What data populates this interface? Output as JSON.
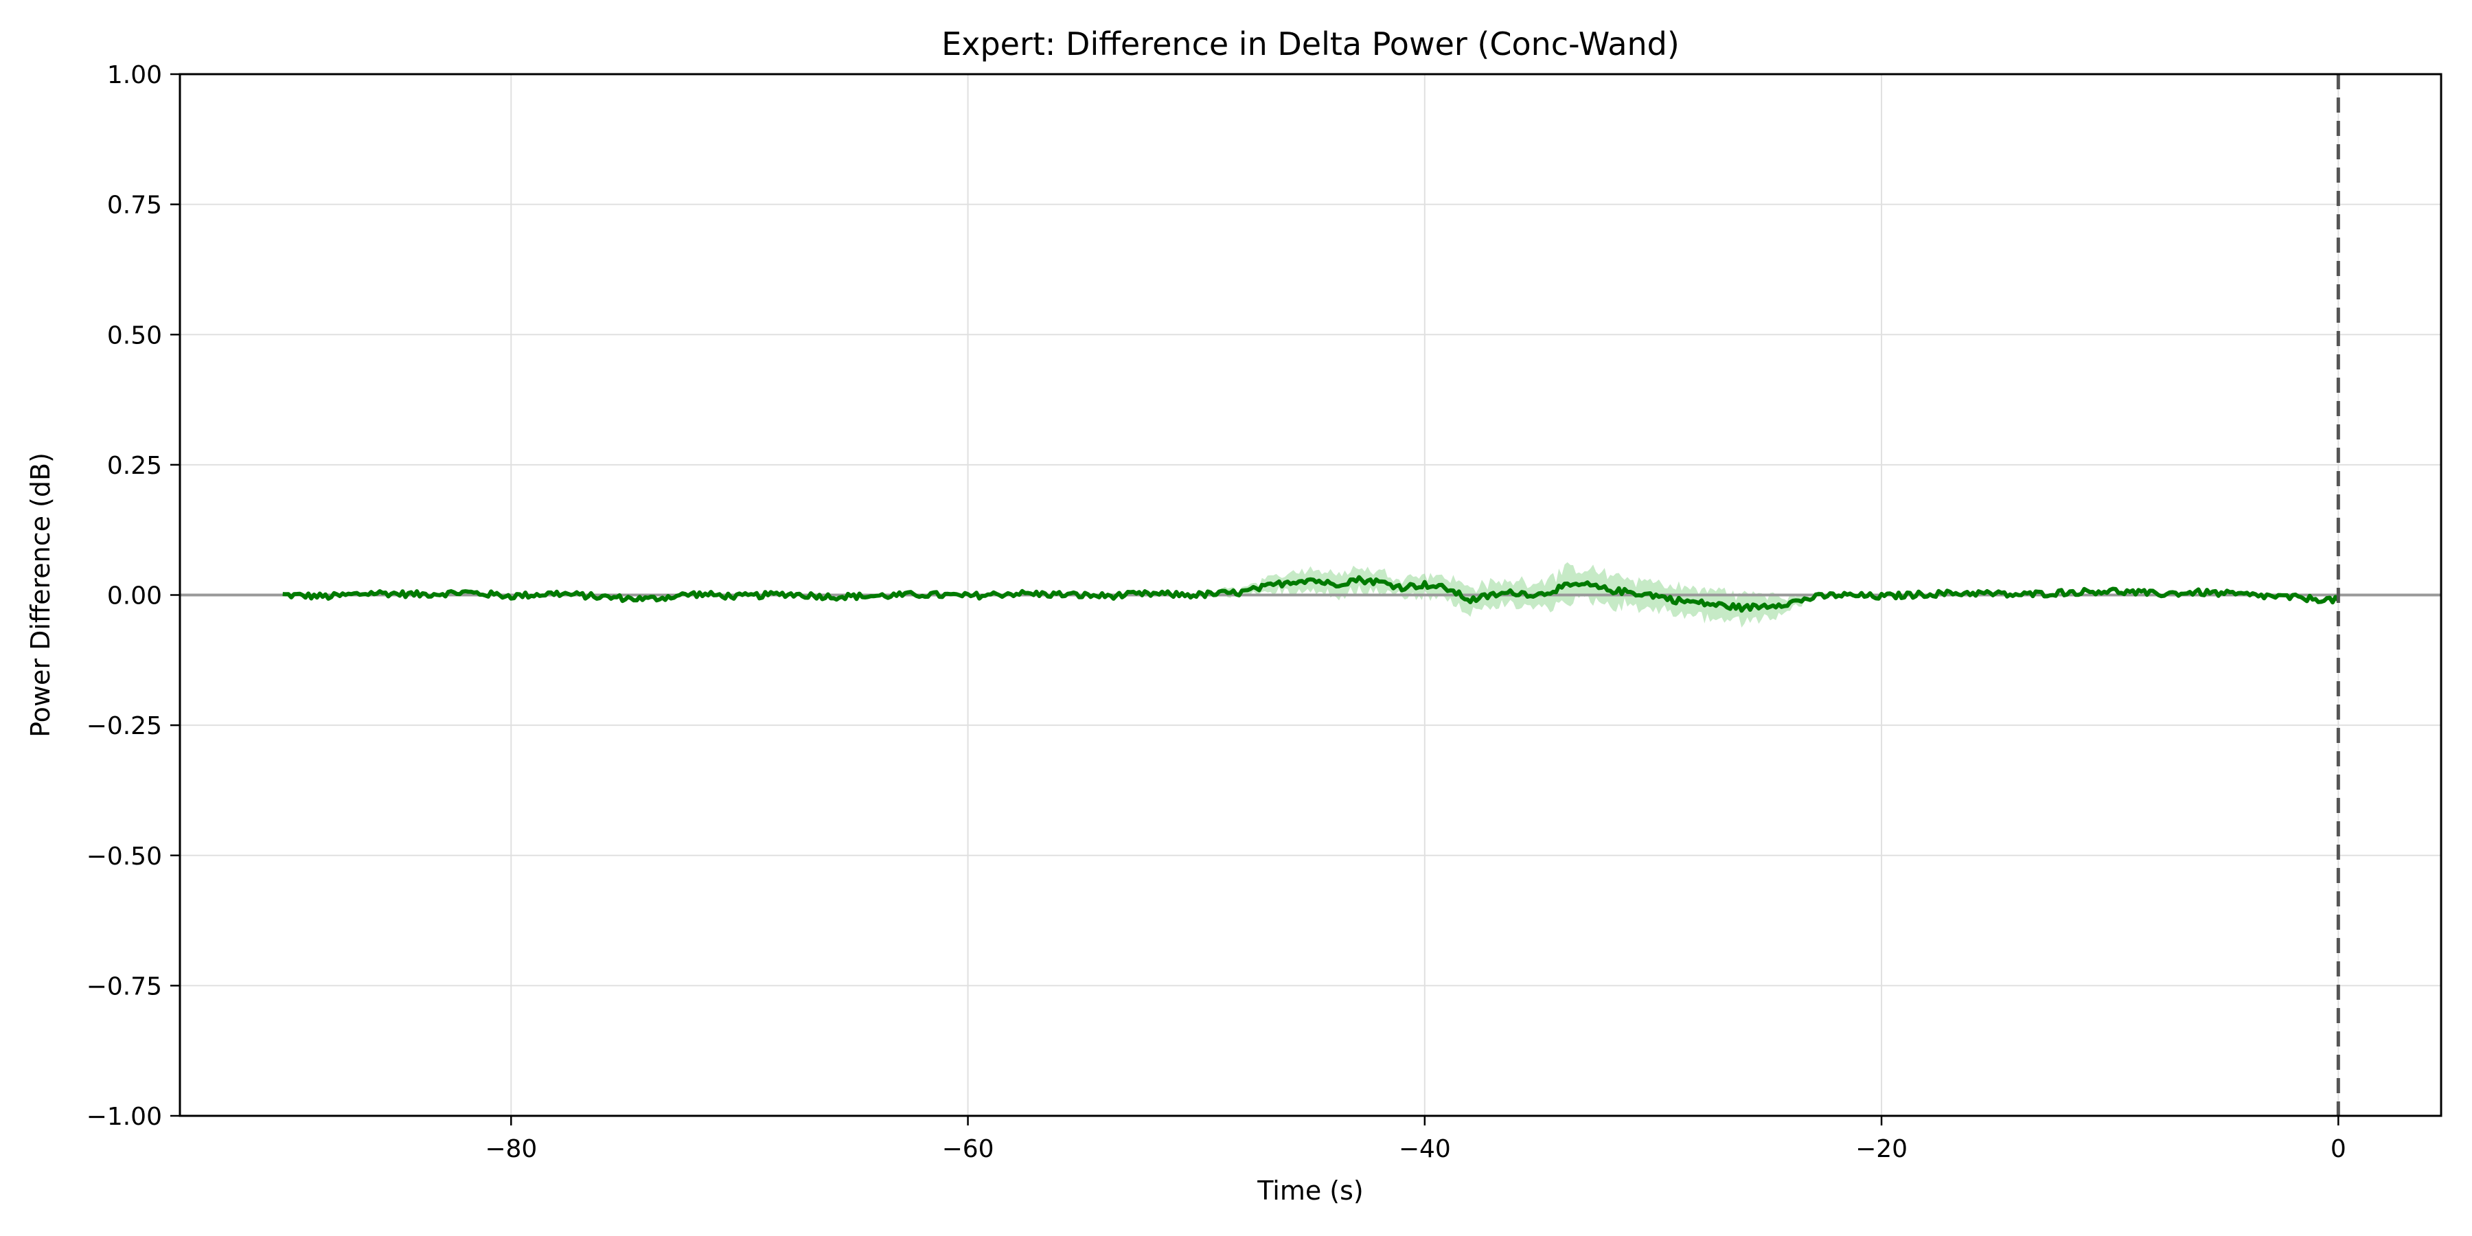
{
  "chart_data": {
    "type": "line",
    "title": "Expert: Difference in Delta Power (Conc-Wand)",
    "xlabel": "Time (s)",
    "ylabel": "Power Difference (dB)",
    "xlim": [
      -94.5,
      4.5
    ],
    "ylim": [
      -1.0,
      1.0
    ],
    "xticks": [
      -80,
      -60,
      -40,
      -20,
      0
    ],
    "xtick_labels": [
      "−80",
      "−60",
      "−40",
      "−20",
      "0"
    ],
    "yticks": [
      1.0,
      0.75,
      0.5,
      0.25,
      0.0,
      -0.25,
      -0.5,
      -0.75,
      -1.0
    ],
    "ytick_labels": [
      "1.00",
      "0.75",
      "0.50",
      "0.25",
      "0.00",
      "−0.25",
      "−0.50",
      "−0.75",
      "−1.00"
    ],
    "grid": true,
    "reference_lines": {
      "y_zero": 0,
      "x_dashed": 0
    },
    "colors": {
      "line": "#007a00",
      "band": "#98d898",
      "zero_line": "#999999",
      "vline": "#555555",
      "grid": "#e0e0e0"
    },
    "series": [
      {
        "x": [
          -90,
          -88,
          -86,
          -84,
          -82,
          -80,
          -78,
          -76,
          -74,
          -72,
          -70,
          -68,
          -66,
          -64,
          -62,
          -60,
          -58,
          -56,
          -54,
          -52,
          -50,
          -48,
          -47,
          -46,
          -45,
          -44,
          -43,
          -42,
          -41,
          -40,
          -39,
          -38,
          -37,
          -36,
          -35,
          -34,
          -33,
          -32,
          -31,
          -30,
          -29,
          -28,
          -27,
          -26,
          -25,
          -24,
          -23,
          -22,
          -20,
          -18,
          -16,
          -14,
          -12,
          -10,
          -8,
          -6,
          -4,
          -2,
          0
        ],
        "y": [
          0.0,
          -0.003,
          0.004,
          0.001,
          0.005,
          -0.002,
          0.003,
          -0.004,
          -0.008,
          0.002,
          -0.003,
          0.002,
          -0.003,
          -0.002,
          0.001,
          -0.002,
          0.003,
          0.001,
          -0.002,
          0.002,
          0.0,
          0.005,
          0.015,
          0.025,
          0.03,
          0.02,
          0.03,
          0.025,
          0.015,
          0.02,
          0.012,
          -0.01,
          0.0,
          0.005,
          0.0,
          0.015,
          0.02,
          0.01,
          0.005,
          0.0,
          -0.01,
          -0.015,
          -0.02,
          -0.025,
          -0.02,
          -0.015,
          -0.005,
          0.0,
          -0.003,
          0.002,
          0.004,
          0.0,
          0.005,
          0.008,
          0.002,
          0.005,
          0.0,
          -0.005,
          -0.01
        ],
        "band": [
          0.003,
          0.003,
          0.003,
          0.003,
          0.003,
          0.003,
          0.003,
          0.003,
          0.003,
          0.003,
          0.003,
          0.003,
          0.003,
          0.003,
          0.003,
          0.003,
          0.003,
          0.003,
          0.003,
          0.003,
          0.004,
          0.008,
          0.012,
          0.018,
          0.022,
          0.02,
          0.022,
          0.02,
          0.018,
          0.02,
          0.022,
          0.025,
          0.022,
          0.022,
          0.025,
          0.03,
          0.03,
          0.028,
          0.025,
          0.025,
          0.025,
          0.025,
          0.028,
          0.025,
          0.022,
          0.012,
          0.004,
          0.003,
          0.003,
          0.003,
          0.003,
          0.003,
          0.003,
          0.003,
          0.003,
          0.003,
          0.003,
          0.003,
          0.003
        ]
      }
    ]
  }
}
